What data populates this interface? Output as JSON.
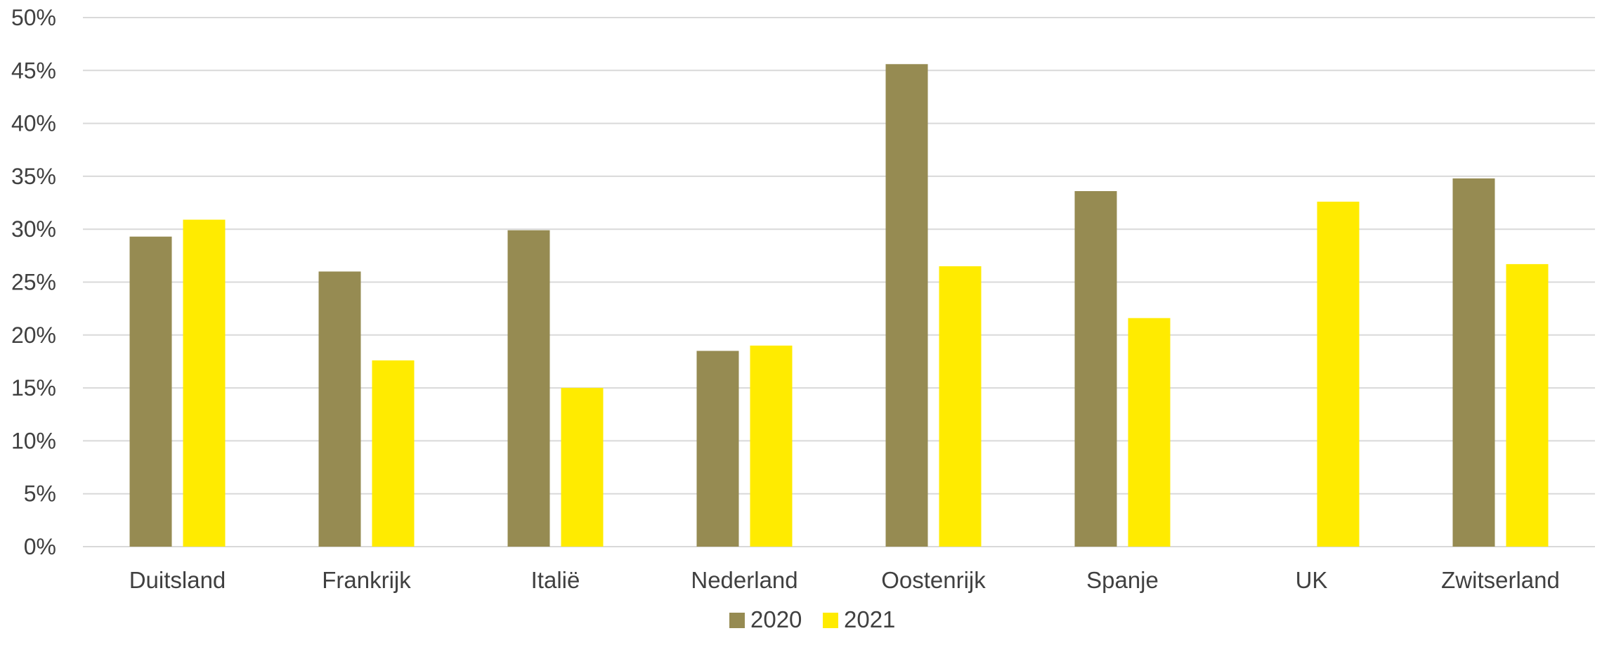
{
  "chart_data": {
    "type": "bar",
    "categories": [
      "Duitsland",
      "Frankrijk",
      "Italië",
      "Nederland",
      "Oostenrijk",
      "Spanje",
      "UK",
      "Zwitserland"
    ],
    "series": [
      {
        "name": "2020",
        "color": "#968b52",
        "values": [
          29.3,
          26.0,
          29.9,
          18.5,
          45.6,
          33.6,
          null,
          34.8
        ]
      },
      {
        "name": "2021",
        "color": "#ffeb00",
        "values": [
          30.9,
          17.6,
          15.0,
          19.0,
          26.5,
          21.6,
          32.6,
          26.7
        ]
      }
    ],
    "yticks": [
      "0%",
      "5%",
      "10%",
      "15%",
      "20%",
      "25%",
      "30%",
      "35%",
      "40%",
      "45%",
      "50%"
    ],
    "ylim": [
      0,
      50
    ],
    "y_unit": "%",
    "grid": true,
    "legend_position": "bottom"
  }
}
